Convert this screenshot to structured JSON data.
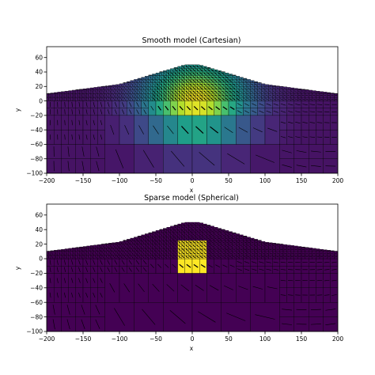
{
  "chart_data": [
    {
      "type": "heatmap",
      "title": "Smooth model (Cartesian)",
      "xlabel": "x",
      "ylabel": "y",
      "xlim": [
        -200,
        200
      ],
      "ylim": [
        -100,
        75
      ],
      "xticks": [
        -200,
        -150,
        -100,
        -50,
        0,
        50,
        100,
        150,
        200
      ],
      "yticks": [
        -100,
        -80,
        -60,
        -40,
        -20,
        0,
        20,
        40,
        60
      ],
      "colormap": "viridis",
      "peak": {
        "x": 5,
        "y": 2,
        "value": 1.0
      },
      "background_value": 0.05,
      "overlay": "arrow vectors in each mesh cell",
      "grid": true
    },
    {
      "type": "heatmap",
      "title": "Sparse model (Spherical)",
      "xlabel": "x",
      "ylabel": "y",
      "xlim": [
        -200,
        200
      ],
      "ylim": [
        -100,
        75
      ],
      "xticks": [
        -200,
        -150,
        -100,
        -50,
        0,
        50,
        100,
        150,
        200
      ],
      "yticks": [
        -100,
        -80,
        -60,
        -40,
        -20,
        0,
        20,
        40,
        60
      ],
      "colormap": "viridis",
      "anomaly_block": {
        "x": [
          -20,
          20
        ],
        "y": [
          -15,
          25
        ],
        "value": 1.0
      },
      "background_value": 0.0,
      "overlay": "arrow vectors in each mesh cell",
      "grid": true
    }
  ],
  "colors": {
    "viridis_low": "#440154",
    "viridis_high": "#fde725",
    "grid": "#000000"
  }
}
